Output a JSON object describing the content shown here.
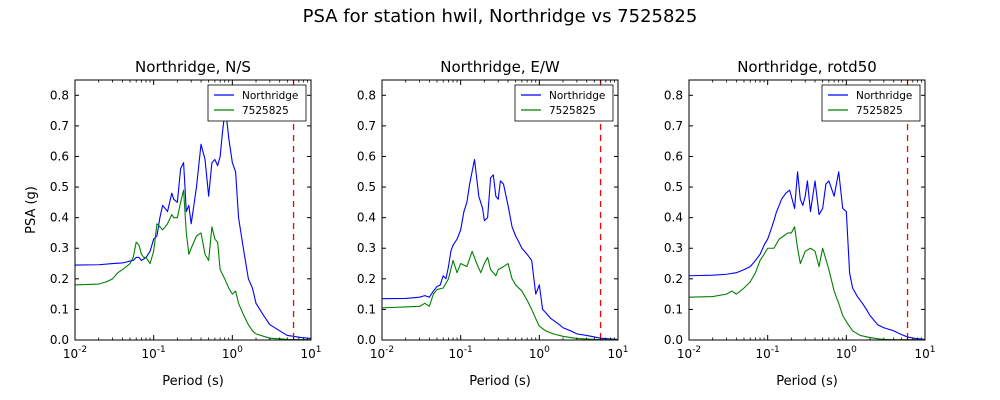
{
  "figure": {
    "title": "PSA for station hwil, Northridge vs 7525825"
  },
  "colors": {
    "northridge": "#0000ff",
    "event": "#008000",
    "marker": "#ff0000"
  },
  "chart_data": [
    {
      "type": "line",
      "title": "Northridge, N/S",
      "xlabel": "Period (s)",
      "ylabel": "PSA (g)",
      "xscale": "log",
      "xlim": [
        0.01,
        10
      ],
      "ylim": [
        0.0,
        0.85
      ],
      "xticks": [
        "10-2",
        "10-1",
        "100",
        "101"
      ],
      "yticks": [
        "0.0",
        "0.1",
        "0.2",
        "0.3",
        "0.4",
        "0.5",
        "0.6",
        "0.7",
        "0.8"
      ],
      "legend_position": "top-right",
      "marker_period": 6.0,
      "series": [
        {
          "name": "Northridge",
          "color": "#0000ff",
          "x": [
            0.01,
            0.02,
            0.03,
            0.04,
            0.045,
            0.05,
            0.055,
            0.06,
            0.065,
            0.07,
            0.075,
            0.08,
            0.09,
            0.1,
            0.11,
            0.12,
            0.13,
            0.14,
            0.15,
            0.17,
            0.18,
            0.2,
            0.22,
            0.24,
            0.25,
            0.26,
            0.28,
            0.3,
            0.32,
            0.35,
            0.4,
            0.45,
            0.5,
            0.55,
            0.6,
            0.65,
            0.7,
            0.75,
            0.8,
            0.85,
            0.9,
            1.0,
            1.1,
            1.2,
            1.4,
            1.6,
            1.8,
            2.0,
            2.5,
            3.0,
            4.0,
            5.0,
            6.0,
            7.5,
            10.0
          ],
          "y": [
            0.245,
            0.246,
            0.25,
            0.252,
            0.255,
            0.258,
            0.26,
            0.27,
            0.27,
            0.26,
            0.265,
            0.27,
            0.29,
            0.33,
            0.34,
            0.4,
            0.44,
            0.43,
            0.42,
            0.48,
            0.46,
            0.45,
            0.56,
            0.58,
            0.5,
            0.42,
            0.44,
            0.38,
            0.43,
            0.5,
            0.64,
            0.59,
            0.47,
            0.58,
            0.59,
            0.57,
            0.6,
            0.68,
            0.74,
            0.72,
            0.66,
            0.58,
            0.55,
            0.4,
            0.29,
            0.2,
            0.17,
            0.12,
            0.08,
            0.05,
            0.03,
            0.015,
            0.012,
            0.008,
            0.005
          ]
        },
        {
          "name": "7525825",
          "color": "#008000",
          "x": [
            0.01,
            0.02,
            0.025,
            0.03,
            0.035,
            0.04,
            0.045,
            0.05,
            0.055,
            0.06,
            0.065,
            0.07,
            0.075,
            0.08,
            0.09,
            0.1,
            0.11,
            0.12,
            0.13,
            0.14,
            0.15,
            0.17,
            0.18,
            0.2,
            0.22,
            0.24,
            0.26,
            0.28,
            0.3,
            0.35,
            0.4,
            0.45,
            0.5,
            0.55,
            0.6,
            0.65,
            0.7,
            0.8,
            0.9,
            1.0,
            1.1,
            1.2,
            1.4,
            1.6,
            1.8,
            2.0,
            2.5,
            3.0,
            4.0,
            5.0,
            7.5,
            10.0
          ],
          "y": [
            0.18,
            0.183,
            0.19,
            0.2,
            0.22,
            0.23,
            0.24,
            0.25,
            0.27,
            0.32,
            0.31,
            0.28,
            0.27,
            0.27,
            0.25,
            0.29,
            0.38,
            0.37,
            0.36,
            0.37,
            0.38,
            0.41,
            0.4,
            0.4,
            0.45,
            0.49,
            0.35,
            0.28,
            0.3,
            0.34,
            0.35,
            0.28,
            0.26,
            0.37,
            0.33,
            0.32,
            0.23,
            0.2,
            0.17,
            0.15,
            0.16,
            0.12,
            0.08,
            0.05,
            0.03,
            0.02,
            0.012,
            0.006,
            0.004,
            0.002,
            0.001,
            0.001
          ]
        }
      ]
    },
    {
      "type": "line",
      "title": "Northridge, E/W",
      "xlabel": "Period (s)",
      "ylabel": "",
      "xscale": "log",
      "xlim": [
        0.01,
        10
      ],
      "ylim": [
        0.0,
        0.85
      ],
      "xticks": [
        "10-2",
        "10-1",
        "100",
        "101"
      ],
      "yticks": [
        "0.0",
        "0.1",
        "0.2",
        "0.3",
        "0.4",
        "0.5",
        "0.6",
        "0.7",
        "0.8"
      ],
      "legend_position": "top-right",
      "marker_period": 6.0,
      "series": [
        {
          "name": "Northridge",
          "color": "#0000ff",
          "x": [
            0.01,
            0.02,
            0.03,
            0.035,
            0.04,
            0.045,
            0.05,
            0.055,
            0.06,
            0.065,
            0.07,
            0.075,
            0.08,
            0.09,
            0.1,
            0.11,
            0.12,
            0.13,
            0.15,
            0.17,
            0.19,
            0.2,
            0.22,
            0.24,
            0.26,
            0.28,
            0.3,
            0.32,
            0.35,
            0.4,
            0.45,
            0.5,
            0.55,
            0.6,
            0.7,
            0.8,
            0.9,
            1.0,
            1.1,
            1.2,
            1.4,
            1.6,
            1.8,
            2.0,
            2.5,
            3.0,
            4.0,
            5.0,
            6.0,
            7.5,
            10.0
          ],
          "y": [
            0.135,
            0.136,
            0.14,
            0.145,
            0.14,
            0.16,
            0.175,
            0.18,
            0.21,
            0.2,
            0.24,
            0.29,
            0.31,
            0.33,
            0.36,
            0.42,
            0.45,
            0.51,
            0.59,
            0.47,
            0.43,
            0.39,
            0.4,
            0.53,
            0.54,
            0.47,
            0.46,
            0.52,
            0.51,
            0.44,
            0.37,
            0.34,
            0.32,
            0.3,
            0.28,
            0.26,
            0.15,
            0.18,
            0.1,
            0.09,
            0.07,
            0.06,
            0.05,
            0.04,
            0.03,
            0.02,
            0.015,
            0.01,
            0.006,
            0.004,
            0.002
          ]
        },
        {
          "name": "7525825",
          "color": "#008000",
          "x": [
            0.01,
            0.02,
            0.03,
            0.035,
            0.04,
            0.045,
            0.05,
            0.06,
            0.07,
            0.08,
            0.09,
            0.1,
            0.12,
            0.14,
            0.16,
            0.18,
            0.2,
            0.22,
            0.24,
            0.26,
            0.28,
            0.3,
            0.35,
            0.4,
            0.45,
            0.5,
            0.6,
            0.7,
            0.8,
            0.9,
            1.0,
            1.2,
            1.5,
            2.0,
            2.5,
            3.0,
            4.0,
            5.0,
            7.5,
            10.0
          ],
          "y": [
            0.105,
            0.108,
            0.11,
            0.12,
            0.11,
            0.15,
            0.165,
            0.17,
            0.2,
            0.26,
            0.22,
            0.25,
            0.24,
            0.29,
            0.25,
            0.22,
            0.25,
            0.27,
            0.23,
            0.22,
            0.21,
            0.23,
            0.24,
            0.25,
            0.2,
            0.18,
            0.16,
            0.13,
            0.1,
            0.07,
            0.045,
            0.03,
            0.02,
            0.012,
            0.008,
            0.005,
            0.003,
            0.002,
            0.001,
            0.001
          ]
        }
      ]
    },
    {
      "type": "line",
      "title": "Northridge, rotd50",
      "xlabel": "Period (s)",
      "ylabel": "",
      "xscale": "log",
      "xlim": [
        0.01,
        10
      ],
      "ylim": [
        0.0,
        0.85
      ],
      "xticks": [
        "10-2",
        "10-1",
        "100",
        "101"
      ],
      "yticks": [
        "0.0",
        "0.1",
        "0.2",
        "0.3",
        "0.4",
        "0.5",
        "0.6",
        "0.7",
        "0.8"
      ],
      "legend_position": "top-right",
      "marker_period": 6.0,
      "series": [
        {
          "name": "Northridge",
          "color": "#0000ff",
          "x": [
            0.01,
            0.02,
            0.03,
            0.04,
            0.05,
            0.06,
            0.07,
            0.08,
            0.09,
            0.1,
            0.11,
            0.12,
            0.13,
            0.14,
            0.15,
            0.17,
            0.19,
            0.2,
            0.22,
            0.24,
            0.26,
            0.28,
            0.3,
            0.32,
            0.35,
            0.4,
            0.45,
            0.5,
            0.55,
            0.6,
            0.7,
            0.8,
            0.9,
            1.0,
            1.1,
            1.2,
            1.4,
            1.6,
            1.8,
            2.0,
            2.5,
            3.0,
            4.0,
            5.0,
            6.0,
            7.5,
            10.0
          ],
          "y": [
            0.21,
            0.212,
            0.215,
            0.22,
            0.23,
            0.24,
            0.26,
            0.28,
            0.31,
            0.33,
            0.36,
            0.39,
            0.42,
            0.44,
            0.46,
            0.48,
            0.49,
            0.47,
            0.43,
            0.55,
            0.46,
            0.44,
            0.47,
            0.52,
            0.42,
            0.52,
            0.41,
            0.43,
            0.51,
            0.52,
            0.47,
            0.55,
            0.43,
            0.42,
            0.22,
            0.17,
            0.14,
            0.12,
            0.1,
            0.08,
            0.05,
            0.04,
            0.03,
            0.018,
            0.01,
            0.005,
            0.002
          ]
        },
        {
          "name": "7525825",
          "color": "#008000",
          "x": [
            0.01,
            0.02,
            0.03,
            0.035,
            0.04,
            0.045,
            0.05,
            0.06,
            0.07,
            0.08,
            0.09,
            0.1,
            0.12,
            0.14,
            0.16,
            0.18,
            0.2,
            0.22,
            0.24,
            0.26,
            0.28,
            0.3,
            0.35,
            0.4,
            0.45,
            0.5,
            0.6,
            0.7,
            0.8,
            0.9,
            1.0,
            1.2,
            1.5,
            2.0,
            2.5,
            3.0,
            4.0,
            5.0,
            7.5,
            10.0
          ],
          "y": [
            0.14,
            0.142,
            0.15,
            0.16,
            0.15,
            0.16,
            0.17,
            0.19,
            0.22,
            0.26,
            0.28,
            0.3,
            0.3,
            0.33,
            0.34,
            0.35,
            0.35,
            0.37,
            0.3,
            0.25,
            0.27,
            0.29,
            0.3,
            0.29,
            0.24,
            0.3,
            0.23,
            0.16,
            0.12,
            0.08,
            0.06,
            0.03,
            0.015,
            0.008,
            0.004,
            0.002,
            0.001,
            0.001,
            0.001,
            0.001
          ]
        }
      ]
    }
  ]
}
